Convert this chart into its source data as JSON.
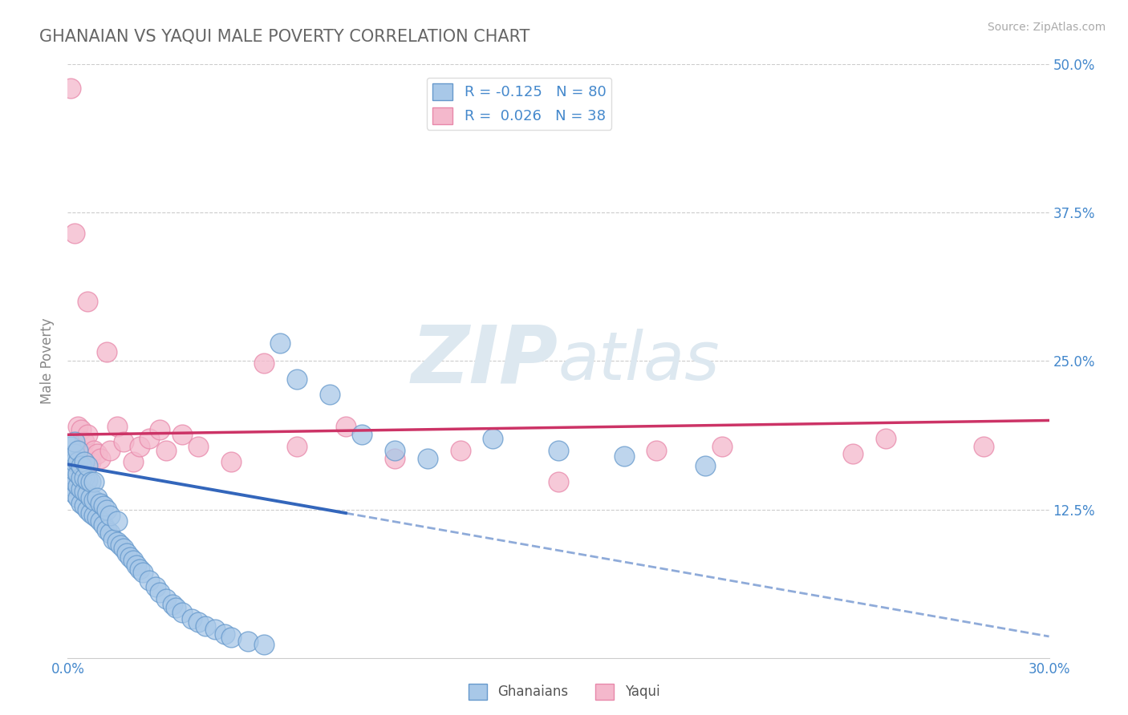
{
  "title": "GHANAIAN VS YAQUI MALE POVERTY CORRELATION CHART",
  "source": "Source: ZipAtlas.com",
  "xlabel_ghanaians": "Ghanaians",
  "xlabel_yaqui": "Yaqui",
  "ylabel": "Male Poverty",
  "xlim": [
    0.0,
    0.3
  ],
  "ylim": [
    0.0,
    0.5
  ],
  "xticks": [
    0.0,
    0.05,
    0.1,
    0.15,
    0.2,
    0.25,
    0.3
  ],
  "xticklabels": [
    "0.0%",
    "",
    "",
    "",
    "",
    "",
    "30.0%"
  ],
  "yticks": [
    0.0,
    0.125,
    0.25,
    0.375,
    0.5
  ],
  "yticklabels": [
    "",
    "12.5%",
    "25.0%",
    "37.5%",
    "50.0%"
  ],
  "ghanaian_color": "#a8c8e8",
  "yaqui_color": "#f4b8cc",
  "ghanaian_edge": "#6699cc",
  "yaqui_edge": "#e888aa",
  "blue_line_color": "#3366bb",
  "pink_line_color": "#cc3366",
  "watermark_zip": "ZIP",
  "watermark_atlas": "atlas",
  "R_ghanaian": "-0.125",
  "N_ghanaian": "80",
  "R_yaqui": "0.026",
  "N_yaqui": "38",
  "title_color": "#666666",
  "axis_label_color": "#4488cc",
  "blue_line_x0": 0.0,
  "blue_line_y0": 0.163,
  "blue_line_x1": 0.085,
  "blue_line_y1": 0.145,
  "blue_line_x2": 0.3,
  "blue_line_y2": 0.018,
  "pink_line_x0": 0.0,
  "pink_line_y0": 0.188,
  "pink_line_x1": 0.3,
  "pink_line_y1": 0.2,
  "ghanaian_x": [
    0.001,
    0.001,
    0.001,
    0.001,
    0.001,
    0.002,
    0.002,
    0.002,
    0.002,
    0.002,
    0.002,
    0.003,
    0.003,
    0.003,
    0.003,
    0.003,
    0.004,
    0.004,
    0.004,
    0.004,
    0.005,
    0.005,
    0.005,
    0.005,
    0.006,
    0.006,
    0.006,
    0.006,
    0.007,
    0.007,
    0.007,
    0.008,
    0.008,
    0.008,
    0.009,
    0.009,
    0.01,
    0.01,
    0.011,
    0.011,
    0.012,
    0.012,
    0.013,
    0.013,
    0.014,
    0.015,
    0.015,
    0.016,
    0.017,
    0.018,
    0.019,
    0.02,
    0.021,
    0.022,
    0.023,
    0.025,
    0.027,
    0.028,
    0.03,
    0.032,
    0.033,
    0.035,
    0.038,
    0.04,
    0.042,
    0.045,
    0.048,
    0.05,
    0.055,
    0.06,
    0.065,
    0.07,
    0.08,
    0.09,
    0.1,
    0.11,
    0.13,
    0.15,
    0.17,
    0.195
  ],
  "ghanaian_y": [
    0.145,
    0.155,
    0.162,
    0.17,
    0.178,
    0.138,
    0.148,
    0.158,
    0.165,
    0.172,
    0.182,
    0.135,
    0.145,
    0.155,
    0.165,
    0.175,
    0.13,
    0.142,
    0.152,
    0.162,
    0.128,
    0.14,
    0.152,
    0.165,
    0.125,
    0.138,
    0.15,
    0.162,
    0.122,
    0.135,
    0.148,
    0.12,
    0.133,
    0.148,
    0.118,
    0.135,
    0.115,
    0.13,
    0.112,
    0.128,
    0.108,
    0.125,
    0.105,
    0.12,
    0.1,
    0.098,
    0.115,
    0.095,
    0.092,
    0.088,
    0.085,
    0.082,
    0.078,
    0.075,
    0.072,
    0.065,
    0.06,
    0.055,
    0.05,
    0.045,
    0.042,
    0.038,
    0.033,
    0.03,
    0.027,
    0.024,
    0.02,
    0.017,
    0.014,
    0.011,
    0.265,
    0.235,
    0.222,
    0.188,
    0.175,
    0.168,
    0.185,
    0.175,
    0.17,
    0.162
  ],
  "yaqui_x": [
    0.001,
    0.002,
    0.002,
    0.003,
    0.003,
    0.004,
    0.004,
    0.005,
    0.005,
    0.006,
    0.006,
    0.007,
    0.008,
    0.009,
    0.01,
    0.012,
    0.013,
    0.015,
    0.017,
    0.02,
    0.022,
    0.025,
    0.028,
    0.03,
    0.035,
    0.04,
    0.05,
    0.06,
    0.07,
    0.085,
    0.1,
    0.12,
    0.15,
    0.18,
    0.2,
    0.24,
    0.25,
    0.28
  ],
  "yaqui_y": [
    0.48,
    0.358,
    0.168,
    0.195,
    0.162,
    0.175,
    0.192,
    0.182,
    0.17,
    0.3,
    0.188,
    0.165,
    0.175,
    0.172,
    0.168,
    0.258,
    0.175,
    0.195,
    0.182,
    0.165,
    0.178,
    0.185,
    0.192,
    0.175,
    0.188,
    0.178,
    0.165,
    0.248,
    0.178,
    0.195,
    0.168,
    0.175,
    0.148,
    0.175,
    0.178,
    0.172,
    0.185,
    0.178
  ]
}
